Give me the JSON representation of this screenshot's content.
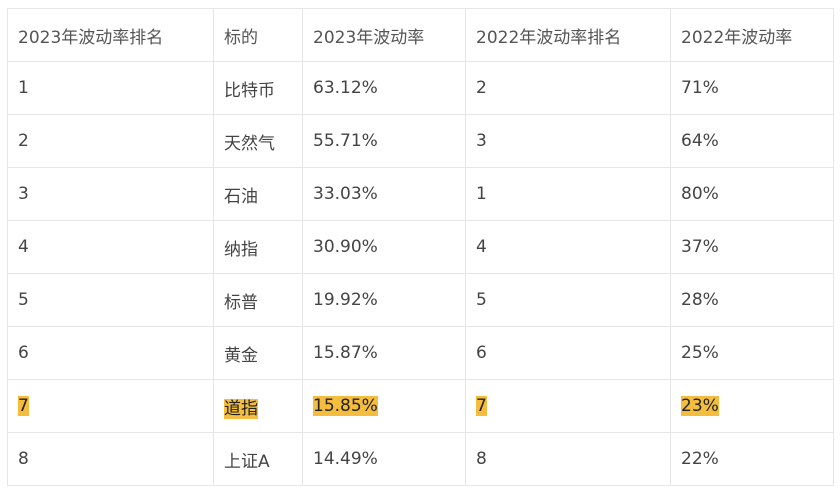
{
  "table": {
    "headers": [
      "2023年波动率排名",
      "标的",
      "2023年波动率",
      "2022年波动率排名",
      "2022年波动率"
    ],
    "rows": [
      [
        "1",
        "比特币",
        "63.12%",
        "2",
        "71%"
      ],
      [
        "2",
        "天然气",
        "55.71%",
        "3",
        "64%"
      ],
      [
        "3",
        "石油",
        "33.03%",
        "1",
        "80%"
      ],
      [
        "4",
        "纳指",
        "30.90%",
        "4",
        "37%"
      ],
      [
        "5",
        "标普",
        "19.92%",
        "5",
        "28%"
      ],
      [
        "6",
        "黄金",
        "15.87%",
        "6",
        "25%"
      ],
      [
        "7",
        "道指",
        "15.85%",
        "7",
        "23%"
      ],
      [
        "8",
        "上证A",
        "14.49%",
        "8",
        "22%"
      ]
    ],
    "highlighted_row": 7,
    "highlight_color": "#f4bd3d"
  }
}
